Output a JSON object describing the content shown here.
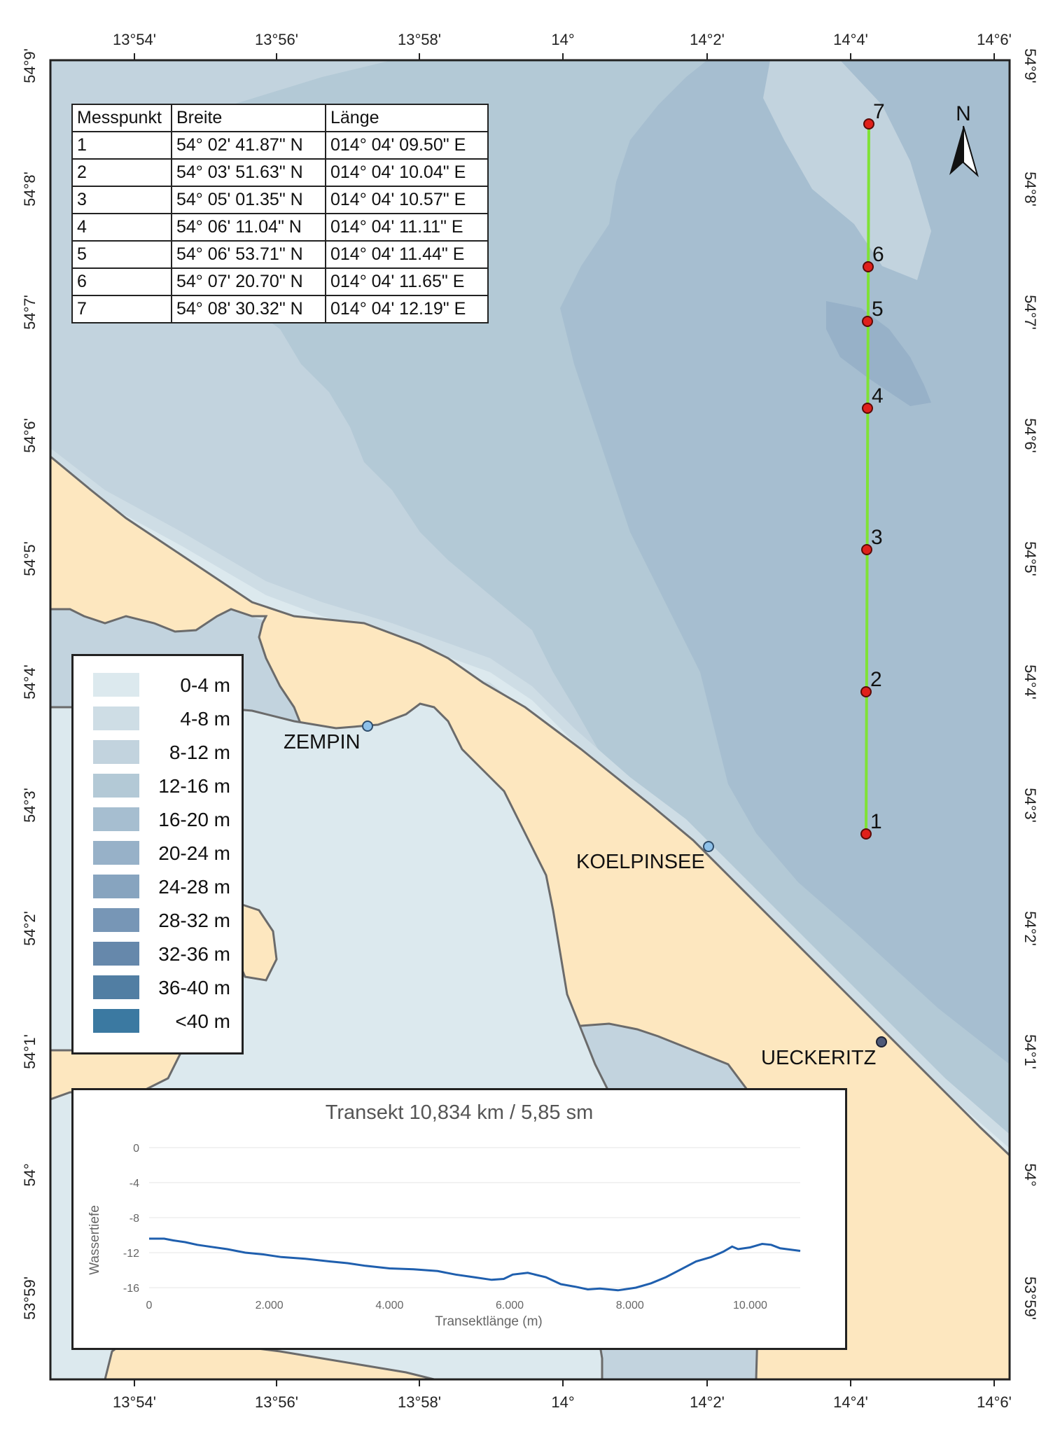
{
  "map": {
    "lon_labels": [
      "13°54'",
      "13°56'",
      "13°58'",
      "14°",
      "14°2'",
      "14°4'",
      "14°6'"
    ],
    "lat_labels": [
      "54°9'",
      "54°8'",
      "54°7'",
      "54°6'",
      "54°5'",
      "54°4'",
      "54°3'",
      "54°2'",
      "54°1'",
      "54°",
      "53°59'"
    ],
    "north_arrow_label": "N",
    "places": [
      {
        "name": "ZEMPIN"
      },
      {
        "name": "KOELPINSEE"
      },
      {
        "name": "UECKERITZ"
      }
    ],
    "transect_points": [
      "1",
      "2",
      "3",
      "4",
      "5",
      "6",
      "7"
    ],
    "colors": {
      "land": "#fde7bf",
      "coast": "#6b6b6b",
      "transect_line": "#7fe236",
      "point": "#e0201b",
      "place_marker_blue": "#8ec1ea",
      "place_marker_dark": "#4f5a78"
    }
  },
  "table": {
    "headers": [
      "Messpunkt",
      "Breite",
      "Länge"
    ],
    "rows": [
      [
        "1",
        "54° 02' 41.87\" N",
        "014° 04' 09.50\" E"
      ],
      [
        "2",
        "54° 03' 51.63\" N",
        "014° 04' 10.04\" E"
      ],
      [
        "3",
        "54° 05' 01.35\" N",
        "014° 04' 10.57\" E"
      ],
      [
        "4",
        "54° 06' 11.04\" N",
        "014° 04' 11.11\" E"
      ],
      [
        "5",
        "54° 06' 53.71\" N",
        "014° 04' 11.44\" E"
      ],
      [
        "6",
        "54° 07' 20.70\" N",
        "014° 04' 11.65\" E"
      ],
      [
        "7",
        "54° 08' 30.32\" N",
        "014° 04' 12.19\" E"
      ]
    ]
  },
  "legend": {
    "items": [
      {
        "label": "0-4 m",
        "color": "#dce9ee"
      },
      {
        "label": "4-8 m",
        "color": "#cedde5"
      },
      {
        "label": "8-12 m",
        "color": "#c2d3de"
      },
      {
        "label": "12-16 m",
        "color": "#b3c9d6"
      },
      {
        "label": "16-20 m",
        "color": "#a6bed0"
      },
      {
        "label": "20-24 m",
        "color": "#97b1c8"
      },
      {
        "label": "24-28 m",
        "color": "#87a4bf"
      },
      {
        "label": "28-32 m",
        "color": "#7796b6"
      },
      {
        "label": "32-36 m",
        "color": "#6688ab"
      },
      {
        "label": "36-40 m",
        "color": "#517ea3"
      },
      {
        "label": "<40 m",
        "color": "#3b79a1"
      }
    ]
  },
  "chart_data": {
    "type": "line",
    "title": "Transekt 10,834 km / 5,85 sm",
    "xlabel": "Transektlänge (m)",
    "ylabel": "Wassertiefe",
    "xlim": [
      0,
      10834
    ],
    "ylim": [
      -16,
      0
    ],
    "x_ticks": [
      0,
      2000,
      4000,
      6000,
      8000,
      10000
    ],
    "x_tick_labels": [
      "0",
      "2.000",
      "4.000",
      "6.000",
      "8.000",
      "10.000"
    ],
    "y_ticks": [
      0,
      -4,
      -8,
      -12,
      -16
    ],
    "y_tick_labels": [
      "0",
      "-4",
      "-8",
      "-12",
      "-16"
    ],
    "grid": true,
    "line_color": "#1f5fae",
    "series": [
      {
        "x": [
          0,
          250,
          400,
          600,
          800,
          1000,
          1300,
          1600,
          1900,
          2200,
          2600,
          3000,
          3300,
          3600,
          4000,
          4400,
          4800,
          5100,
          5400,
          5700,
          5900,
          6050,
          6300,
          6600,
          6850,
          7100,
          7300,
          7500,
          7800,
          8100,
          8350,
          8600,
          8850,
          9100,
          9350,
          9550,
          9700,
          9800,
          10000,
          10200,
          10350,
          10500,
          10834
        ],
        "y": [
          -10.4,
          -10.4,
          -10.6,
          -10.8,
          -11.1,
          -11.3,
          -11.6,
          -12.0,
          -12.2,
          -12.5,
          -12.7,
          -13.0,
          -13.2,
          -13.5,
          -13.8,
          -13.9,
          -14.1,
          -14.5,
          -14.8,
          -15.1,
          -15.0,
          -14.5,
          -14.3,
          -14.8,
          -15.6,
          -15.9,
          -16.2,
          -16.1,
          -16.3,
          -16.0,
          -15.5,
          -14.8,
          -13.9,
          -13.0,
          -12.5,
          -11.9,
          -11.3,
          -11.6,
          -11.4,
          -11.0,
          -11.1,
          -11.5,
          -11.8
        ]
      }
    ]
  }
}
